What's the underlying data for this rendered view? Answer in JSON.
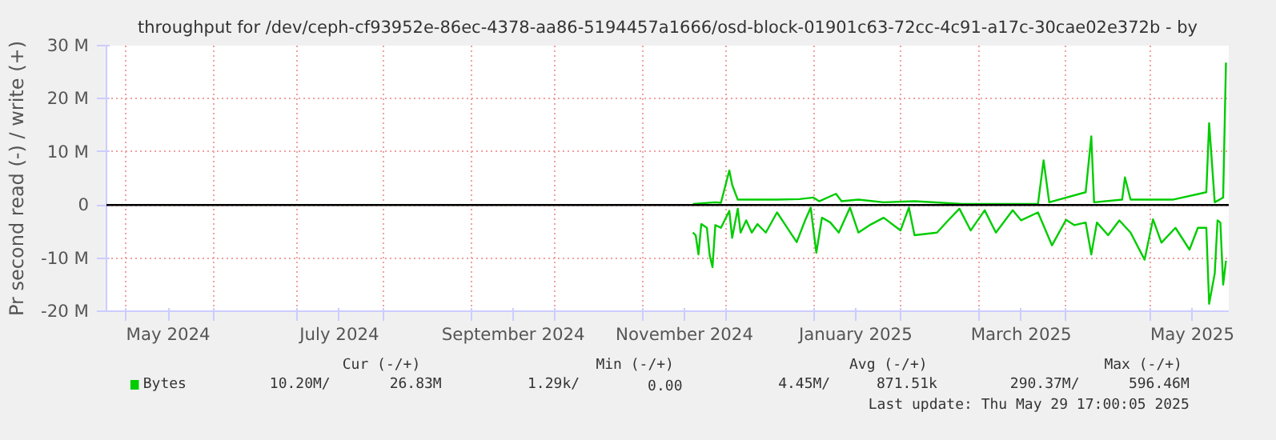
{
  "chart_data": {
    "type": "line",
    "title": "throughput for /dev/ceph-cf93952e-86ec-4378-aa86-5194457a1666/osd-block-01901c63-72cc-4c91-a17c-30cae02e372b - by",
    "ylabel": "Pr second read (-) / write (+)",
    "xlim": [
      "2024-04-24",
      "2025-05-29"
    ],
    "xticks": [
      {
        "value": "2024-05-01",
        "label": null
      },
      {
        "value": "2024-05-16",
        "label": "May 2024"
      },
      {
        "value": "2024-06-01",
        "label": null
      },
      {
        "value": "2024-07-01",
        "label": null
      },
      {
        "value": "2024-07-16",
        "label": "July 2024"
      },
      {
        "value": "2024-08-01",
        "label": null
      },
      {
        "value": "2024-09-01",
        "label": null
      },
      {
        "value": "2024-09-16",
        "label": "September 2024"
      },
      {
        "value": "2024-10-01",
        "label": null
      },
      {
        "value": "2024-11-01",
        "label": null
      },
      {
        "value": "2024-11-16",
        "label": "November 2024"
      },
      {
        "value": "2024-12-01",
        "label": null
      },
      {
        "value": "2025-01-01",
        "label": null
      },
      {
        "value": "2025-01-16",
        "label": "January 2025"
      },
      {
        "value": "2025-02-01",
        "label": null
      },
      {
        "value": "2025-03-01",
        "label": null
      },
      {
        "value": "2025-03-16",
        "label": "March 2025"
      },
      {
        "value": "2025-04-01",
        "label": null
      },
      {
        "value": "2025-05-01",
        "label": null
      },
      {
        "value": "2025-05-16",
        "label": "May 2025"
      }
    ],
    "ylim": [
      -20,
      30
    ],
    "yticks": [
      {
        "value": -20,
        "label": "-20 M"
      },
      {
        "value": -10,
        "label": "-10 M"
      },
      0,
      {
        "value": 10,
        "label": "10 M"
      },
      {
        "value": 20,
        "label": "20 M"
      },
      {
        "value": 30,
        "label": "30 M"
      }
    ],
    "grid": true,
    "legend": "bottom",
    "marker": "none",
    "line_style": "solid",
    "ref_lines": [
      {
        "axis": "y",
        "value": 0,
        "label": null,
        "color": "#000000"
      }
    ],
    "series": [
      {
        "name": "Bytes",
        "color": "#00cc00",
        "x": [
          "2024-11-19",
          "2024-11-27",
          "2024-11-29",
          "2024-12-02",
          "2024-12-03",
          "2024-12-05",
          "2024-12-10",
          "2024-12-19",
          "2024-12-27",
          "2025-01-01",
          "2025-01-03",
          "2025-01-09",
          "2025-01-11",
          "2025-01-17",
          "2025-01-26",
          "2025-02-06",
          "2025-02-23",
          "2025-03-14",
          "2025-03-22",
          "2025-03-24",
          "2025-03-26",
          "2025-04-08",
          "2025-04-10",
          "2025-04-11",
          "2025-04-21",
          "2025-04-22",
          "2025-04-24",
          "2025-05-09",
          "2025-05-21",
          "2025-05-22",
          "2025-05-24",
          "2025-05-27",
          "2025-05-28"
        ],
        "values": [
          0.2,
          0.5,
          0.4,
          6.5,
          3.8,
          1.0,
          1.0,
          1.0,
          1.1,
          1.4,
          0.7,
          2.1,
          0.7,
          1.0,
          0.5,
          0.7,
          0.2,
          0.2,
          0.2,
          8.4,
          0.5,
          2.4,
          12.9,
          0.5,
          1.0,
          5.2,
          1.0,
          1.0,
          2.4,
          15.4,
          0.5,
          1.4,
          26.8
        ]
      },
      {
        "color": "#00cc00",
        "x": [
          "2024-11-19",
          "2024-11-20",
          "2024-11-21",
          "2024-11-22",
          "2024-11-24",
          "2024-11-25",
          "2024-11-26",
          "2024-11-27",
          "2024-11-29",
          "2024-12-02",
          "2024-12-03",
          "2024-12-05",
          "2024-12-06",
          "2024-12-08",
          "2024-12-10",
          "2024-12-12",
          "2024-12-15",
          "2024-12-19",
          "2024-12-22",
          "2024-12-26",
          "2024-12-29",
          "2024-12-31",
          "2025-01-02",
          "2025-01-04",
          "2025-01-07",
          "2025-01-10",
          "2025-01-14",
          "2025-01-17",
          "2025-01-21",
          "2025-01-26",
          "2025-02-01",
          "2025-02-04",
          "2025-02-06",
          "2025-02-14",
          "2025-02-18",
          "2025-02-22",
          "2025-02-26",
          "2025-03-03",
          "2025-03-07",
          "2025-03-13",
          "2025-03-16",
          "2025-03-22",
          "2025-03-27",
          "2025-04-01",
          "2025-04-04",
          "2025-04-08",
          "2025-04-10",
          "2025-04-12",
          "2025-04-16",
          "2025-04-20",
          "2025-04-24",
          "2025-04-29",
          "2025-05-02",
          "2025-05-05",
          "2025-05-10",
          "2025-05-15",
          "2025-05-18",
          "2025-05-21",
          "2025-05-22",
          "2025-05-24",
          "2025-05-25",
          "2025-05-26",
          "2025-05-27",
          "2025-05-28"
        ],
        "values": [
          -5.2,
          -5.7,
          -9.3,
          -3.6,
          -4.3,
          -9.5,
          -11.7,
          -3.8,
          -4.3,
          -1.1,
          -6.2,
          -0.7,
          -5.2,
          -2.9,
          -5.2,
          -3.6,
          -5.2,
          -1.4,
          -3.8,
          -7.0,
          -2.9,
          -0.5,
          -9.0,
          -2.4,
          -3.3,
          -5.2,
          -0.5,
          -5.2,
          -3.8,
          -2.4,
          -4.8,
          -0.5,
          -5.7,
          -5.2,
          -2.9,
          -0.7,
          -4.8,
          -1.0,
          -5.2,
          -1.0,
          -2.9,
          -1.4,
          -7.6,
          -2.8,
          -3.8,
          -3.3,
          -9.3,
          -3.3,
          -5.7,
          -2.9,
          -5.2,
          -10.3,
          -2.7,
          -7.1,
          -4.3,
          -8.4,
          -4.3,
          -4.3,
          -18.6,
          -12.9,
          -2.9,
          -3.3,
          -15.0,
          -10.5
        ]
      }
    ],
    "annotations": [
      "Cur (-/+)",
      "Min (-/+)",
      "Avg (-/+)",
      "Max (-/+)",
      "10.20M/",
      "26.83M",
      "1.29k/",
      "0.00",
      "4.45M/",
      "871.51k",
      "290.37M/",
      "596.46M",
      "Last update: Thu May 29 17:00:05 2025"
    ]
  }
}
